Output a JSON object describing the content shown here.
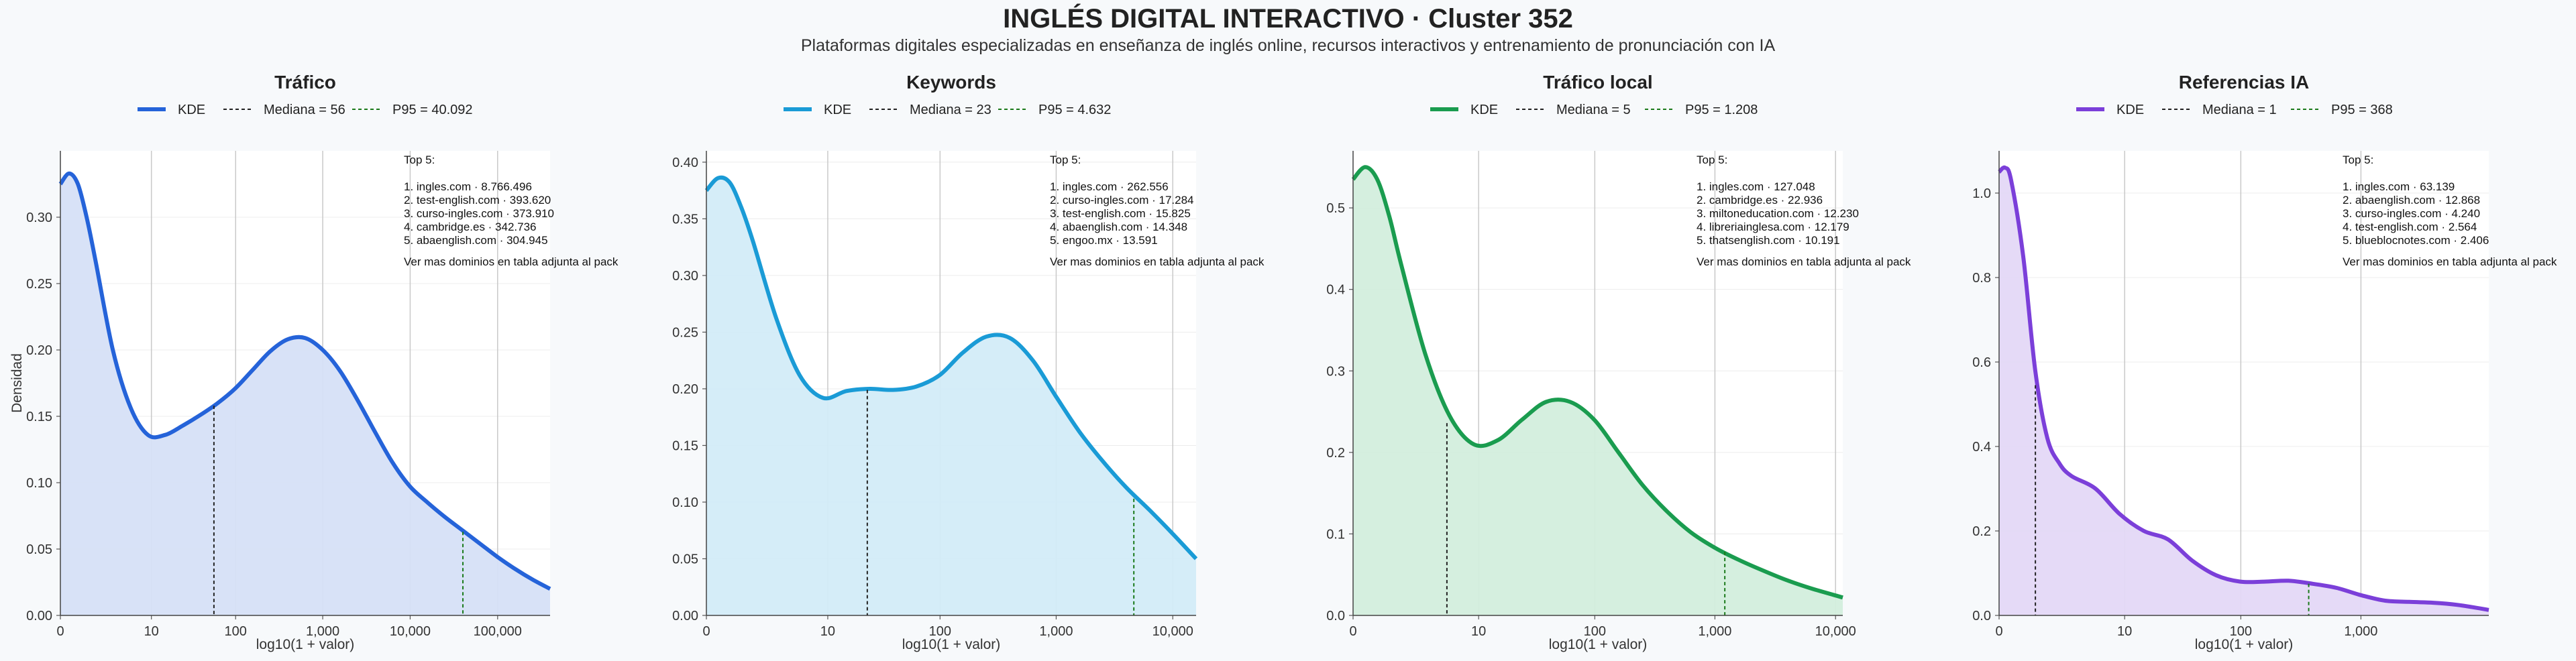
{
  "header": {
    "title": "INGLÉS DIGITAL INTERACTIVO · Cluster 352",
    "subtitle": "Plataformas digitales especializadas en enseñanza de inglés online, recursos interactivos y entrenamiento de pronunciación con IA"
  },
  "legend_labels": {
    "kde": "KDE"
  },
  "axis_labels": {
    "x": "log10(1 + valor)",
    "y": "Densidad"
  },
  "top_label": "Top 5:",
  "footnote": "Ver mas dominios en tabla adjunta al pack",
  "chart_data": [
    {
      "type": "area",
      "title": "Tráfico",
      "color": "#2563d9",
      "fill": "#d6e0f7",
      "xmax": 5.6,
      "ylim": [
        0,
        0.35
      ],
      "yticks": [
        0,
        0.05,
        0.1,
        0.15,
        0.2,
        0.25,
        0.3
      ],
      "ytick_labels": [
        "0.00",
        "0.05",
        "0.10",
        "0.15",
        "0.20",
        "0.25",
        "0.30"
      ],
      "xticks": [
        0,
        1.041,
        2.004,
        3.0,
        4.0,
        5.0
      ],
      "xtick_labels": [
        "0",
        "10",
        "100",
        "1,000",
        "10,000",
        "100,000"
      ],
      "median": {
        "label": "Mediana = 56",
        "x": 1.756,
        "y": 0.158
      },
      "p95": {
        "label": "P95 = 40.092",
        "x": 4.603,
        "y": 0.063
      },
      "kde_x": [
        0,
        0.1,
        0.2,
        0.3,
        0.4,
        0.6,
        0.8,
        1.0,
        1.2,
        1.4,
        1.6,
        1.8,
        2.0,
        2.2,
        2.4,
        2.6,
        2.8,
        3.0,
        3.2,
        3.4,
        3.6,
        3.8,
        4.0,
        4.2,
        4.4,
        4.6,
        4.8,
        5.0,
        5.2,
        5.4,
        5.6
      ],
      "kde_y": [
        0.325,
        0.333,
        0.325,
        0.3,
        0.268,
        0.2,
        0.157,
        0.136,
        0.136,
        0.143,
        0.151,
        0.16,
        0.171,
        0.185,
        0.199,
        0.208,
        0.209,
        0.2,
        0.184,
        0.162,
        0.138,
        0.115,
        0.097,
        0.085,
        0.074,
        0.064,
        0.054,
        0.044,
        0.035,
        0.027,
        0.02
      ],
      "top5": [
        "1. ingles.com · 8.766.496",
        "2. test-english.com · 393.620",
        "3. curso-ingles.com · 373.910",
        "4. cambridge.es · 342.736",
        "5. abaenglish.com · 304.945"
      ]
    },
    {
      "type": "area",
      "title": "Keywords",
      "color": "#1a9bd6",
      "fill": "#d3ecf8",
      "xmax": 4.2,
      "ylim": [
        0,
        0.41
      ],
      "yticks": [
        0,
        0.05,
        0.1,
        0.15,
        0.2,
        0.25,
        0.3,
        0.35,
        0.4
      ],
      "ytick_labels": [
        "0.00",
        "0.05",
        "0.10",
        "0.15",
        "0.20",
        "0.25",
        "0.30",
        "0.35",
        "0.40"
      ],
      "xticks": [
        0,
        1.041,
        2.004,
        3.0,
        4.0
      ],
      "xtick_labels": [
        "0",
        "10",
        "100",
        "1,000",
        "10,000"
      ],
      "median": {
        "label": "Mediana = 23",
        "x": 1.38,
        "y": 0.199
      },
      "p95": {
        "label": "P95 = 4.632",
        "x": 3.666,
        "y": 0.103
      },
      "kde_x": [
        0,
        0.1,
        0.2,
        0.3,
        0.4,
        0.6,
        0.8,
        1.0,
        1.2,
        1.4,
        1.6,
        1.8,
        2.0,
        2.2,
        2.4,
        2.6,
        2.8,
        3.0,
        3.2,
        3.4,
        3.6,
        3.8,
        4.0,
        4.2
      ],
      "kde_y": [
        0.375,
        0.386,
        0.382,
        0.36,
        0.33,
        0.262,
        0.212,
        0.192,
        0.198,
        0.2,
        0.199,
        0.202,
        0.212,
        0.232,
        0.246,
        0.245,
        0.225,
        0.193,
        0.162,
        0.136,
        0.113,
        0.093,
        0.072,
        0.05
      ],
      "top5": [
        "1. ingles.com · 262.556",
        "2. curso-ingles.com · 17.284",
        "3. test-english.com · 15.825",
        "4. abaenglish.com · 14.348",
        "5. engoo.mx · 13.591"
      ]
    },
    {
      "type": "area",
      "title": "Tráfico local",
      "color": "#1a9c4f",
      "fill": "#d3eedd",
      "xmax": 4.06,
      "ylim": [
        0,
        0.57
      ],
      "yticks": [
        0,
        0.1,
        0.2,
        0.3,
        0.4,
        0.5
      ],
      "ytick_labels": [
        "0.0",
        "0.1",
        "0.2",
        "0.3",
        "0.4",
        "0.5"
      ],
      "xticks": [
        0,
        1.041,
        2.004,
        3.0,
        4.0
      ],
      "xtick_labels": [
        "0",
        "10",
        "100",
        "1,000",
        "10,000"
      ],
      "median": {
        "label": "Mediana = 5",
        "x": 0.778,
        "y": 0.236
      },
      "p95": {
        "label": "P95 = 1.208",
        "x": 3.082,
        "y": 0.078
      },
      "kde_x": [
        0,
        0.1,
        0.2,
        0.3,
        0.4,
        0.6,
        0.8,
        1.0,
        1.2,
        1.4,
        1.6,
        1.8,
        2.0,
        2.2,
        2.4,
        2.6,
        2.8,
        3.0,
        3.2,
        3.4,
        3.6,
        3.8,
        4.06
      ],
      "kde_y": [
        0.535,
        0.55,
        0.535,
        0.49,
        0.43,
        0.32,
        0.245,
        0.21,
        0.215,
        0.24,
        0.262,
        0.262,
        0.24,
        0.2,
        0.16,
        0.128,
        0.102,
        0.083,
        0.068,
        0.055,
        0.043,
        0.033,
        0.022
      ],
      "top5": [
        "1. ingles.com · 127.048",
        "2. cambridge.es · 22.936",
        "3. miltoneducation.com · 12.230",
        "4. libreriainglesa.com · 12.179",
        "5. thatsenglish.com · 10.191"
      ]
    },
    {
      "type": "area",
      "title": "Referencias IA",
      "color": "#7b3fd9",
      "fill": "#e4d8f7",
      "xmax": 4.06,
      "ylim": [
        0,
        1.1
      ],
      "yticks": [
        0,
        0.2,
        0.4,
        0.6,
        0.8,
        1.0
      ],
      "ytick_labels": [
        "0.0",
        "0.2",
        "0.4",
        "0.6",
        "0.8",
        "1.0"
      ],
      "xticks": [
        0,
        1.041,
        2.004,
        3.0
      ],
      "xtick_labels": [
        "0",
        "10",
        "100",
        "1,000"
      ],
      "median": {
        "label": "Mediana = 1",
        "x": 0.301,
        "y": 0.545
      },
      "p95": {
        "label": "P95 = 368",
        "x": 2.567,
        "y": 0.075
      },
      "kde_x": [
        0,
        0.05,
        0.1,
        0.2,
        0.3,
        0.4,
        0.5,
        0.6,
        0.8,
        1.0,
        1.2,
        1.4,
        1.6,
        1.8,
        2.0,
        2.2,
        2.4,
        2.6,
        2.8,
        3.0,
        3.2,
        3.4,
        3.6,
        3.8,
        4.06
      ],
      "kde_y": [
        1.05,
        1.06,
        1.03,
        0.85,
        0.58,
        0.42,
        0.36,
        0.33,
        0.3,
        0.24,
        0.2,
        0.18,
        0.13,
        0.095,
        0.08,
        0.08,
        0.082,
        0.075,
        0.065,
        0.048,
        0.035,
        0.032,
        0.03,
        0.025,
        0.013
      ],
      "top5": [
        "1. ingles.com · 63.139",
        "2. abaenglish.com · 12.868",
        "3. curso-ingles.com · 4.240",
        "4. test-english.com · 2.564",
        "5. blueblocnotes.com · 2.406"
      ]
    }
  ]
}
